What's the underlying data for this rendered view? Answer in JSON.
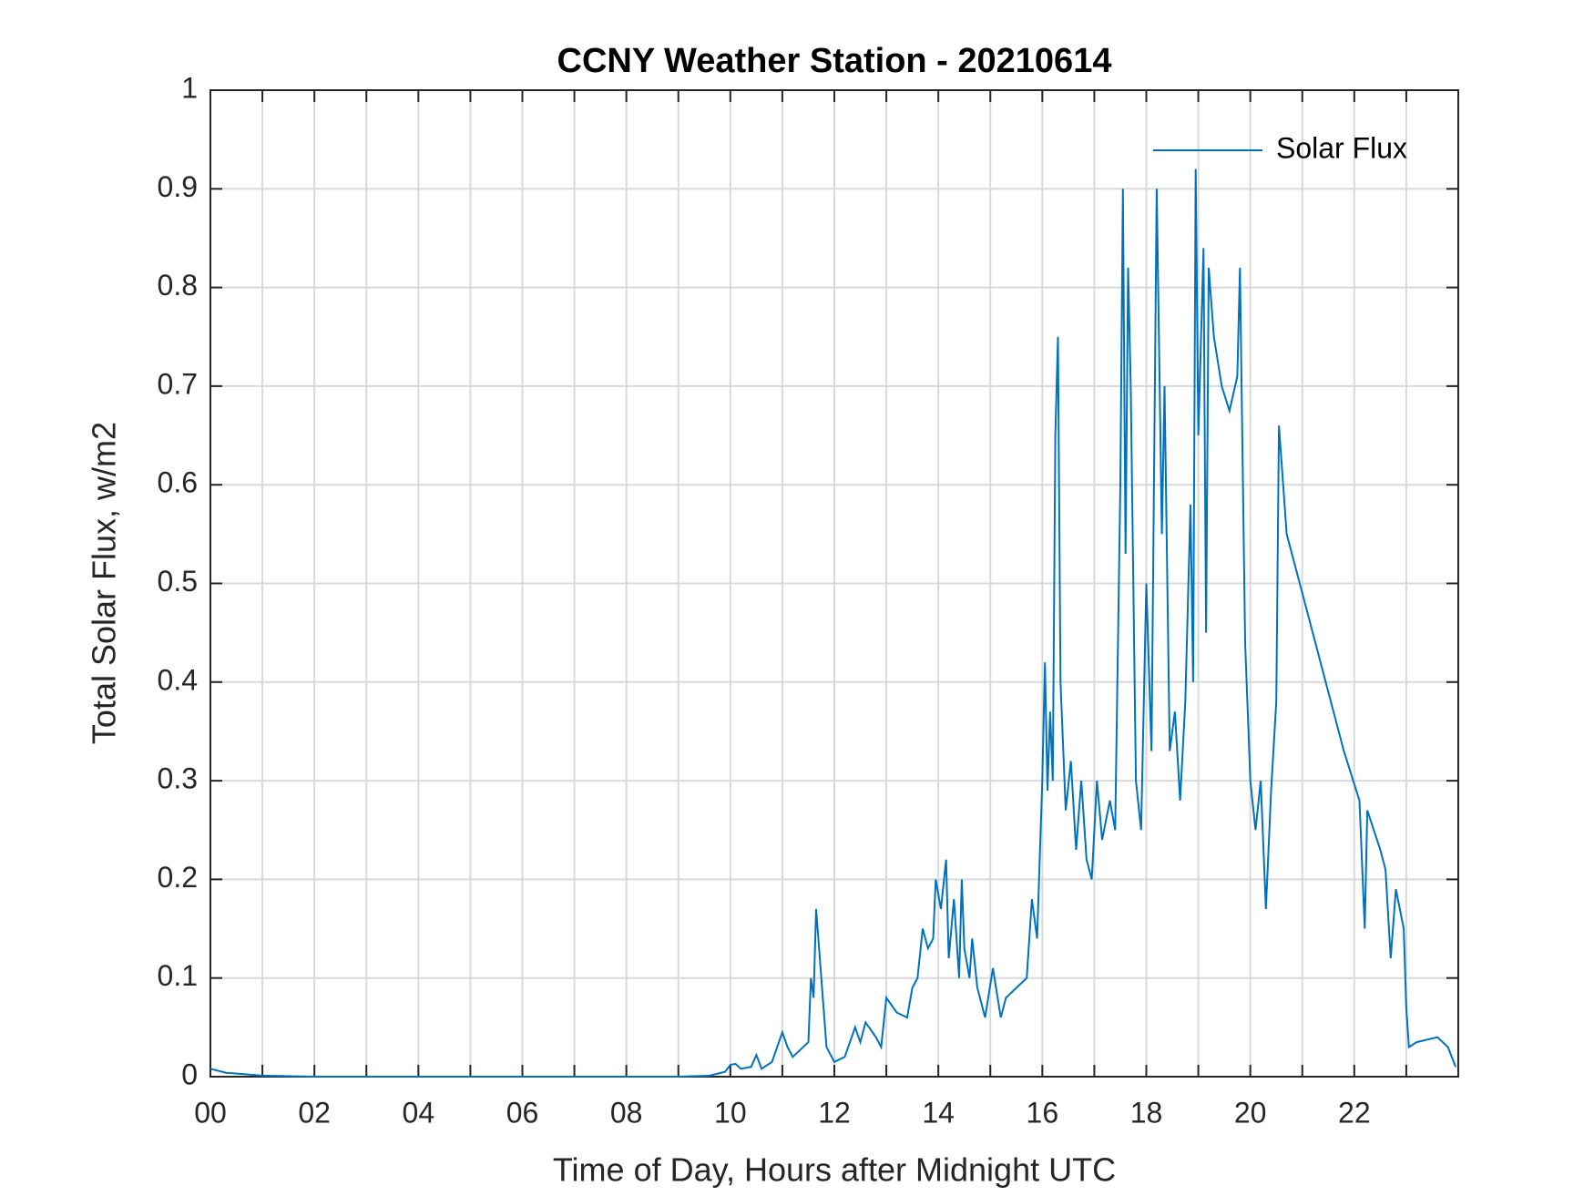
{
  "chart_data": {
    "type": "line",
    "title": "CCNY Weather Station - 20210614",
    "xlabel": "Time of Day, Hours after Midnight UTC",
    "ylabel": "Total Solar Flux, w/m2",
    "xlim": [
      0,
      24
    ],
    "ylim": [
      0,
      1
    ],
    "xticks": [
      {
        "value": 0,
        "label": "00"
      },
      {
        "value": 2,
        "label": "02"
      },
      {
        "value": 4,
        "label": "04"
      },
      {
        "value": 6,
        "label": "06"
      },
      {
        "value": 8,
        "label": "08"
      },
      {
        "value": 10,
        "label": "10"
      },
      {
        "value": 12,
        "label": "12"
      },
      {
        "value": 14,
        "label": "14"
      },
      {
        "value": 16,
        "label": "16"
      },
      {
        "value": 18,
        "label": "18"
      },
      {
        "value": 20,
        "label": "20"
      },
      {
        "value": 22,
        "label": "22"
      }
    ],
    "x_minor_ticks": [
      1,
      3,
      5,
      7,
      9,
      11,
      13,
      15,
      17,
      19,
      21,
      23
    ],
    "yticks": [
      0,
      0.1,
      0.2,
      0.3,
      0.4,
      0.5,
      0.6,
      0.7,
      0.8,
      0.9,
      1
    ],
    "grid": true,
    "legend": "upper-right",
    "x": [
      0,
      0.3,
      1,
      2,
      9,
      9.6,
      9.9,
      10,
      10.1,
      10.2,
      10.4,
      10.5,
      10.6,
      10.8,
      11,
      11.1,
      11.2,
      11.5,
      11.55,
      11.6,
      11.65,
      11.75,
      11.85,
      12,
      12.2,
      12.3,
      12.4,
      12.5,
      12.6,
      12.8,
      12.9,
      13,
      13.2,
      13.4,
      13.5,
      13.6,
      13.7,
      13.8,
      13.9,
      13.95,
      14.05,
      14.15,
      14.2,
      14.3,
      14.4,
      14.45,
      14.5,
      14.6,
      14.65,
      14.75,
      14.9,
      15.05,
      15.2,
      15.3,
      15.5,
      15.7,
      15.8,
      15.9,
      16,
      16.05,
      16.1,
      16.15,
      16.2,
      16.25,
      16.3,
      16.35,
      16.45,
      16.55,
      16.65,
      16.75,
      16.85,
      16.95,
      17.05,
      17.15,
      17.3,
      17.4,
      17.5,
      17.55,
      17.6,
      17.65,
      17.7,
      17.8,
      17.9,
      18,
      18.1,
      18.2,
      18.3,
      18.35,
      18.45,
      18.55,
      18.65,
      18.75,
      18.85,
      18.9,
      18.95,
      19,
      19.1,
      19.15,
      19.2,
      19.3,
      19.45,
      19.6,
      19.75,
      19.8,
      19.9,
      20,
      20.1,
      20.2,
      20.3,
      20.4,
      20.5,
      20.55,
      20.7,
      21,
      21.3,
      21.6,
      21.8,
      22.1,
      22.2,
      22.25,
      22.5,
      22.6,
      22.7,
      22.8,
      22.95,
      23,
      23.05,
      23.2,
      23.6,
      23.8,
      23.95
    ],
    "series": [
      {
        "name": "Solar Flux",
        "color": "#0072bd",
        "values": [
          0.008,
          0.004,
          0.001,
          0,
          0,
          0.001,
          0.005,
          0.012,
          0.013,
          0.008,
          0.01,
          0.022,
          0.008,
          0.015,
          0.045,
          0.03,
          0.02,
          0.035,
          0.1,
          0.08,
          0.17,
          0.1,
          0.03,
          0.015,
          0.02,
          0.035,
          0.05,
          0.035,
          0.055,
          0.04,
          0.03,
          0.08,
          0.065,
          0.06,
          0.09,
          0.1,
          0.15,
          0.13,
          0.14,
          0.2,
          0.17,
          0.22,
          0.12,
          0.18,
          0.1,
          0.2,
          0.13,
          0.1,
          0.14,
          0.09,
          0.06,
          0.11,
          0.06,
          0.08,
          0.09,
          0.1,
          0.18,
          0.14,
          0.3,
          0.42,
          0.29,
          0.37,
          0.3,
          0.65,
          0.75,
          0.4,
          0.27,
          0.32,
          0.23,
          0.3,
          0.22,
          0.2,
          0.3,
          0.24,
          0.28,
          0.25,
          0.6,
          0.9,
          0.53,
          0.82,
          0.7,
          0.3,
          0.25,
          0.5,
          0.33,
          0.9,
          0.55,
          0.7,
          0.33,
          0.37,
          0.28,
          0.38,
          0.58,
          0.4,
          0.92,
          0.65,
          0.84,
          0.45,
          0.82,
          0.75,
          0.7,
          0.675,
          0.71,
          0.82,
          0.44,
          0.3,
          0.25,
          0.3,
          0.17,
          0.29,
          0.38,
          0.66,
          0.55,
          0.49,
          0.43,
          0.37,
          0.33,
          0.28,
          0.15,
          0.27,
          0.23,
          0.21,
          0.12,
          0.19,
          0.15,
          0.07,
          0.03,
          0.035,
          0.04,
          0.03,
          0.01
        ]
      }
    ]
  }
}
